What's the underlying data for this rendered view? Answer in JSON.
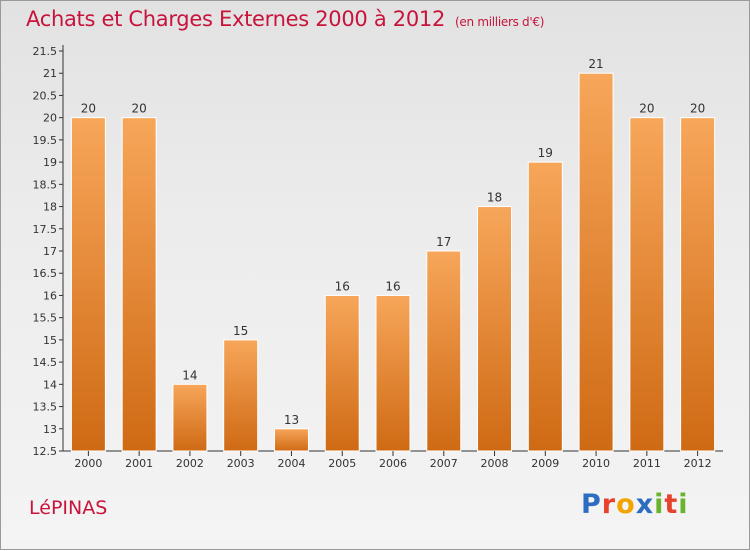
{
  "header": {
    "title": "Achats et Charges Externes 2000 à 2012",
    "unit": "(en milliers d'€)"
  },
  "footer": {
    "city": "LéPINAS",
    "logo": {
      "text": "Proxiti",
      "letters": [
        {
          "char": "P",
          "color": "#2d6cc0"
        },
        {
          "char": "r",
          "color": "#e8422c"
        },
        {
          "char": "o",
          "color": "#f2a400"
        },
        {
          "char": "x",
          "color": "#2d6cc0"
        },
        {
          "char": "i",
          "color": "#6ab42d"
        },
        {
          "char": "t",
          "color": "#e8422c"
        },
        {
          "char": "i",
          "color": "#6ab42d"
        }
      ]
    }
  },
  "colors": {
    "accent": "#c8143c",
    "bar_top": "#f7a65a",
    "bar_bottom": "#cf6a14"
  },
  "chart_data": {
    "type": "bar",
    "title": "Achats et Charges Externes 2000 à 2012",
    "subtitle": "(en milliers d'€)",
    "categories": [
      "2000",
      "2001",
      "2002",
      "2003",
      "2004",
      "2005",
      "2006",
      "2007",
      "2008",
      "2009",
      "2010",
      "2011",
      "2012"
    ],
    "values": [
      20,
      20,
      14,
      15,
      13,
      16,
      16,
      17,
      18,
      19,
      21,
      20,
      20
    ],
    "data_labels": [
      "20",
      "20",
      "14",
      "15",
      "13",
      "16",
      "16",
      "17",
      "18",
      "19",
      "21",
      "20",
      "20"
    ],
    "ylim": [
      12.5,
      21.5
    ],
    "yticks": [
      12.5,
      13,
      13.5,
      14,
      14.5,
      15,
      15.5,
      16,
      16.5,
      17,
      17.5,
      18,
      18.5,
      19,
      19.5,
      20,
      20.5,
      21,
      21.5
    ],
    "ytick_labels": [
      "12.5",
      "13",
      "13.5",
      "14",
      "14.5",
      "15",
      "15.5",
      "16",
      "16.5",
      "17",
      "17.5",
      "18",
      "18.5",
      "19",
      "19.5",
      "20",
      "20.5",
      "21",
      "21.5"
    ],
    "grid": false,
    "legend": "none"
  }
}
